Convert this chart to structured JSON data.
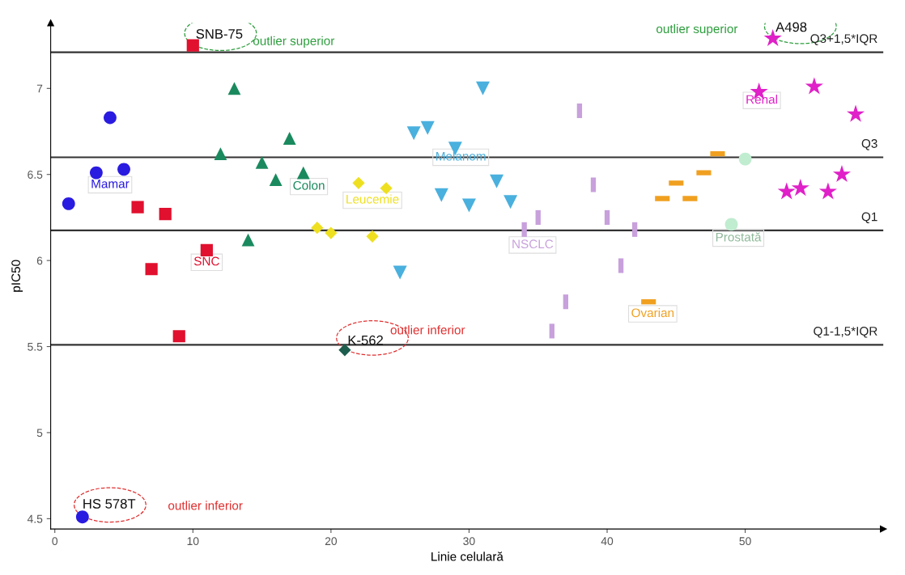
{
  "chart_data": {
    "type": "scatter",
    "xlabel": "Linie celulară",
    "ylabel": "pIC50",
    "xlim": [
      -0.3,
      60
    ],
    "ylim": [
      4.44,
      7.38
    ],
    "xticks": [
      0,
      10,
      20,
      30,
      40,
      50
    ],
    "yticks": [
      4.5,
      5,
      5.5,
      6,
      6.5,
      7
    ],
    "grid": false,
    "legend": false,
    "series": [
      {
        "name": "Mamar",
        "color": "#2a1be0",
        "marker": "circle",
        "x": [
          1,
          2,
          3,
          4,
          5
        ],
        "values": [
          6.33,
          4.51,
          6.51,
          6.83,
          6.53
        ]
      },
      {
        "name": "SNC",
        "color": "#e0102e",
        "marker": "square",
        "x": [
          6,
          7,
          8,
          9,
          10,
          11
        ],
        "values": [
          6.31,
          5.95,
          6.27,
          5.56,
          7.25,
          6.06
        ]
      },
      {
        "name": "Colon",
        "color": "#1a8a5e",
        "marker": "triangle",
        "x": [
          12,
          13,
          14,
          15,
          16,
          17,
          18
        ],
        "values": [
          6.62,
          7.0,
          6.12,
          6.57,
          6.47,
          6.71,
          6.51
        ]
      },
      {
        "name": "Leucemie",
        "color": "#eee020",
        "colors": [
          "#eee020",
          "#eee020",
          "#1d5e4e",
          "#eee020",
          "#eee020",
          "#eee020"
        ],
        "marker": "diamond",
        "x": [
          19,
          20,
          21,
          22,
          23,
          24
        ],
        "values": [
          6.19,
          6.16,
          5.48,
          6.45,
          6.14,
          6.42
        ]
      },
      {
        "name": "Melanom",
        "color": "#4ab0de",
        "marker": "triangle-down",
        "x": [
          25,
          26,
          27,
          28,
          29,
          30,
          31,
          32,
          33
        ],
        "values": [
          5.93,
          6.74,
          6.77,
          6.38,
          6.65,
          6.32,
          7.0,
          6.46,
          6.34
        ]
      },
      {
        "name": "NSCLC",
        "color": "#c8a0dc",
        "marker": "rect-vertical",
        "x": [
          34,
          35,
          36,
          37,
          38,
          39,
          40,
          41,
          42
        ],
        "values": [
          6.18,
          6.25,
          5.59,
          5.76,
          6.87,
          6.44,
          6.25,
          5.97,
          6.18
        ]
      },
      {
        "name": "Ovarian",
        "color": "#f0a020",
        "marker": "rect-horizontal",
        "x": [
          43,
          44,
          45,
          46,
          47,
          48
        ],
        "values": [
          5.76,
          6.36,
          6.45,
          6.36,
          6.51,
          6.62
        ]
      },
      {
        "name": "Prostată",
        "color": "#c0ecd0",
        "marker": "circle",
        "x": [
          49,
          50
        ],
        "values": [
          6.21,
          6.59
        ]
      },
      {
        "name": "Renal",
        "color": "#e020c8",
        "marker": "star",
        "x": [
          51,
          52,
          53,
          54,
          55,
          56,
          57,
          58
        ],
        "values": [
          6.98,
          7.29,
          6.4,
          6.42,
          7.01,
          6.4,
          6.5,
          6.85
        ]
      }
    ],
    "ref_lines": [
      {
        "axis": "y",
        "value": 7.21,
        "label": "Q3+1,5*IQR",
        "color": "#333333"
      },
      {
        "axis": "y",
        "value": 6.6,
        "label": "Q3",
        "color": "#333333"
      },
      {
        "axis": "y",
        "value": 6.175,
        "label": "Q1",
        "color": "#333333"
      },
      {
        "axis": "y",
        "value": 5.51,
        "label": "Q1-1,5*IQR",
        "color": "#333333"
      }
    ],
    "annotations": [
      {
        "text": "SNB-75",
        "x": 10,
        "y": 7.25
      },
      "outlier superior",
      {
        "text": "A498",
        "x": 52,
        "y": 7.29
      },
      "outlier superior",
      {
        "text": "K-562",
        "x": 21,
        "y": 5.48
      },
      "outlier inferior",
      {
        "text": "HS 578T",
        "x": 2,
        "y": 4.51
      },
      "outlier inferior"
    ]
  }
}
